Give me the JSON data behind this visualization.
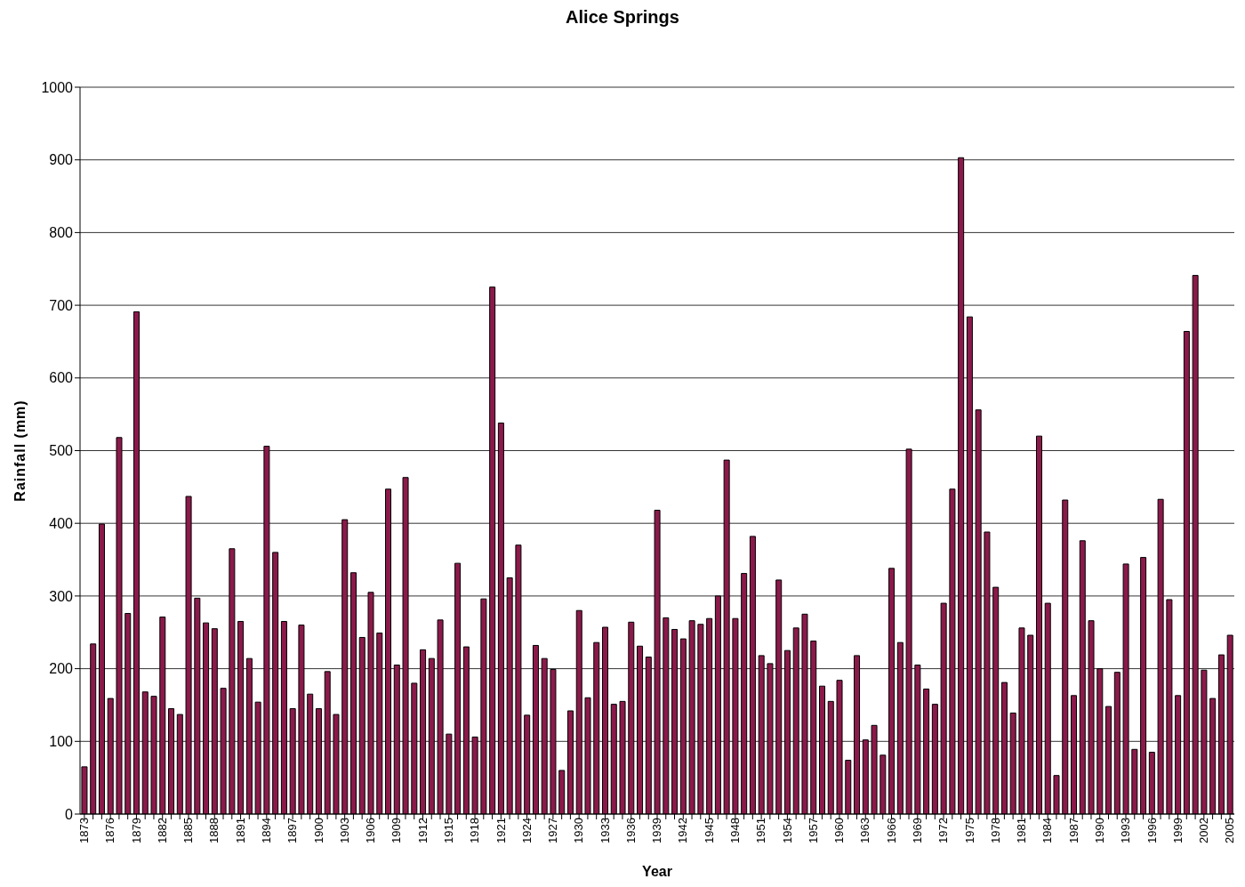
{
  "chart_data": {
    "type": "bar",
    "title": "Alice Springs",
    "xlabel": "Year",
    "ylabel": "Rainfall (mm)",
    "categories": [
      "1873",
      null,
      null,
      "1876",
      null,
      null,
      "1879",
      null,
      null,
      "1882",
      null,
      null,
      "1885",
      null,
      null,
      "1888",
      null,
      null,
      "1891",
      null,
      null,
      "1894",
      null,
      null,
      "1897",
      null,
      null,
      "1900",
      null,
      null,
      "1903",
      null,
      null,
      "1906",
      null,
      null,
      "1909",
      null,
      null,
      "1912",
      null,
      null,
      "1915",
      null,
      null,
      "1918",
      null,
      null,
      "1921",
      null,
      null,
      "1924",
      null,
      null,
      "1927",
      null,
      null,
      "1930",
      null,
      null,
      "1933",
      null,
      null,
      "1936",
      null,
      null,
      "1939",
      null,
      null,
      "1942",
      null,
      null,
      "1945",
      null,
      null,
      "1948",
      null,
      null,
      "1951",
      null,
      null,
      "1954",
      null,
      null,
      "1957",
      null,
      null,
      "1960",
      null,
      null,
      "1963",
      null,
      null,
      "1966",
      null,
      null,
      "1969",
      null,
      null,
      "1972",
      null,
      null,
      "1975",
      null,
      null,
      "1978",
      null,
      null,
      "1981",
      null,
      null,
      "1984",
      null,
      null,
      "1987",
      null,
      null,
      "1990",
      null,
      null,
      "1993",
      null,
      null,
      "1996",
      null,
      null,
      "1999",
      null,
      null,
      "2002",
      null,
      null,
      "2005"
    ],
    "values": [
      65,
      234,
      399,
      159,
      518,
      276,
      691,
      168,
      162,
      271,
      145,
      137,
      437,
      297,
      263,
      255,
      173,
      365,
      265,
      214,
      154,
      506,
      360,
      265,
      145,
      260,
      165,
      145,
      196,
      137,
      405,
      332,
      243,
      305,
      249,
      447,
      205,
      463,
      180,
      226,
      214,
      267,
      110,
      345,
      230,
      106,
      296,
      725,
      538,
      325,
      370,
      136,
      232,
      214,
      199,
      60,
      142,
      280,
      160,
      236,
      257,
      151,
      155,
      264,
      231,
      216,
      418,
      270,
      254,
      241,
      266,
      261,
      269,
      300,
      487,
      269,
      331,
      382,
      218,
      207,
      322,
      225,
      256,
      275,
      238,
      176,
      155,
      184,
      74,
      218,
      102,
      122,
      81,
      338,
      236,
      502,
      205,
      172,
      151,
      290,
      447,
      903,
      684,
      556,
      388,
      312,
      181,
      139,
      256,
      246,
      520,
      290,
      53,
      432,
      163,
      376,
      266,
      200,
      148,
      195,
      344,
      89,
      353,
      85,
      433,
      295,
      163,
      664,
      741,
      198,
      159,
      219,
      246
    ],
    "color": "#8b1a4a",
    "ylim": [
      0,
      1000
    ],
    "yticks": [
      0,
      100,
      200,
      300,
      400,
      500,
      600,
      700,
      800,
      900,
      1000
    ],
    "grid": "y"
  }
}
